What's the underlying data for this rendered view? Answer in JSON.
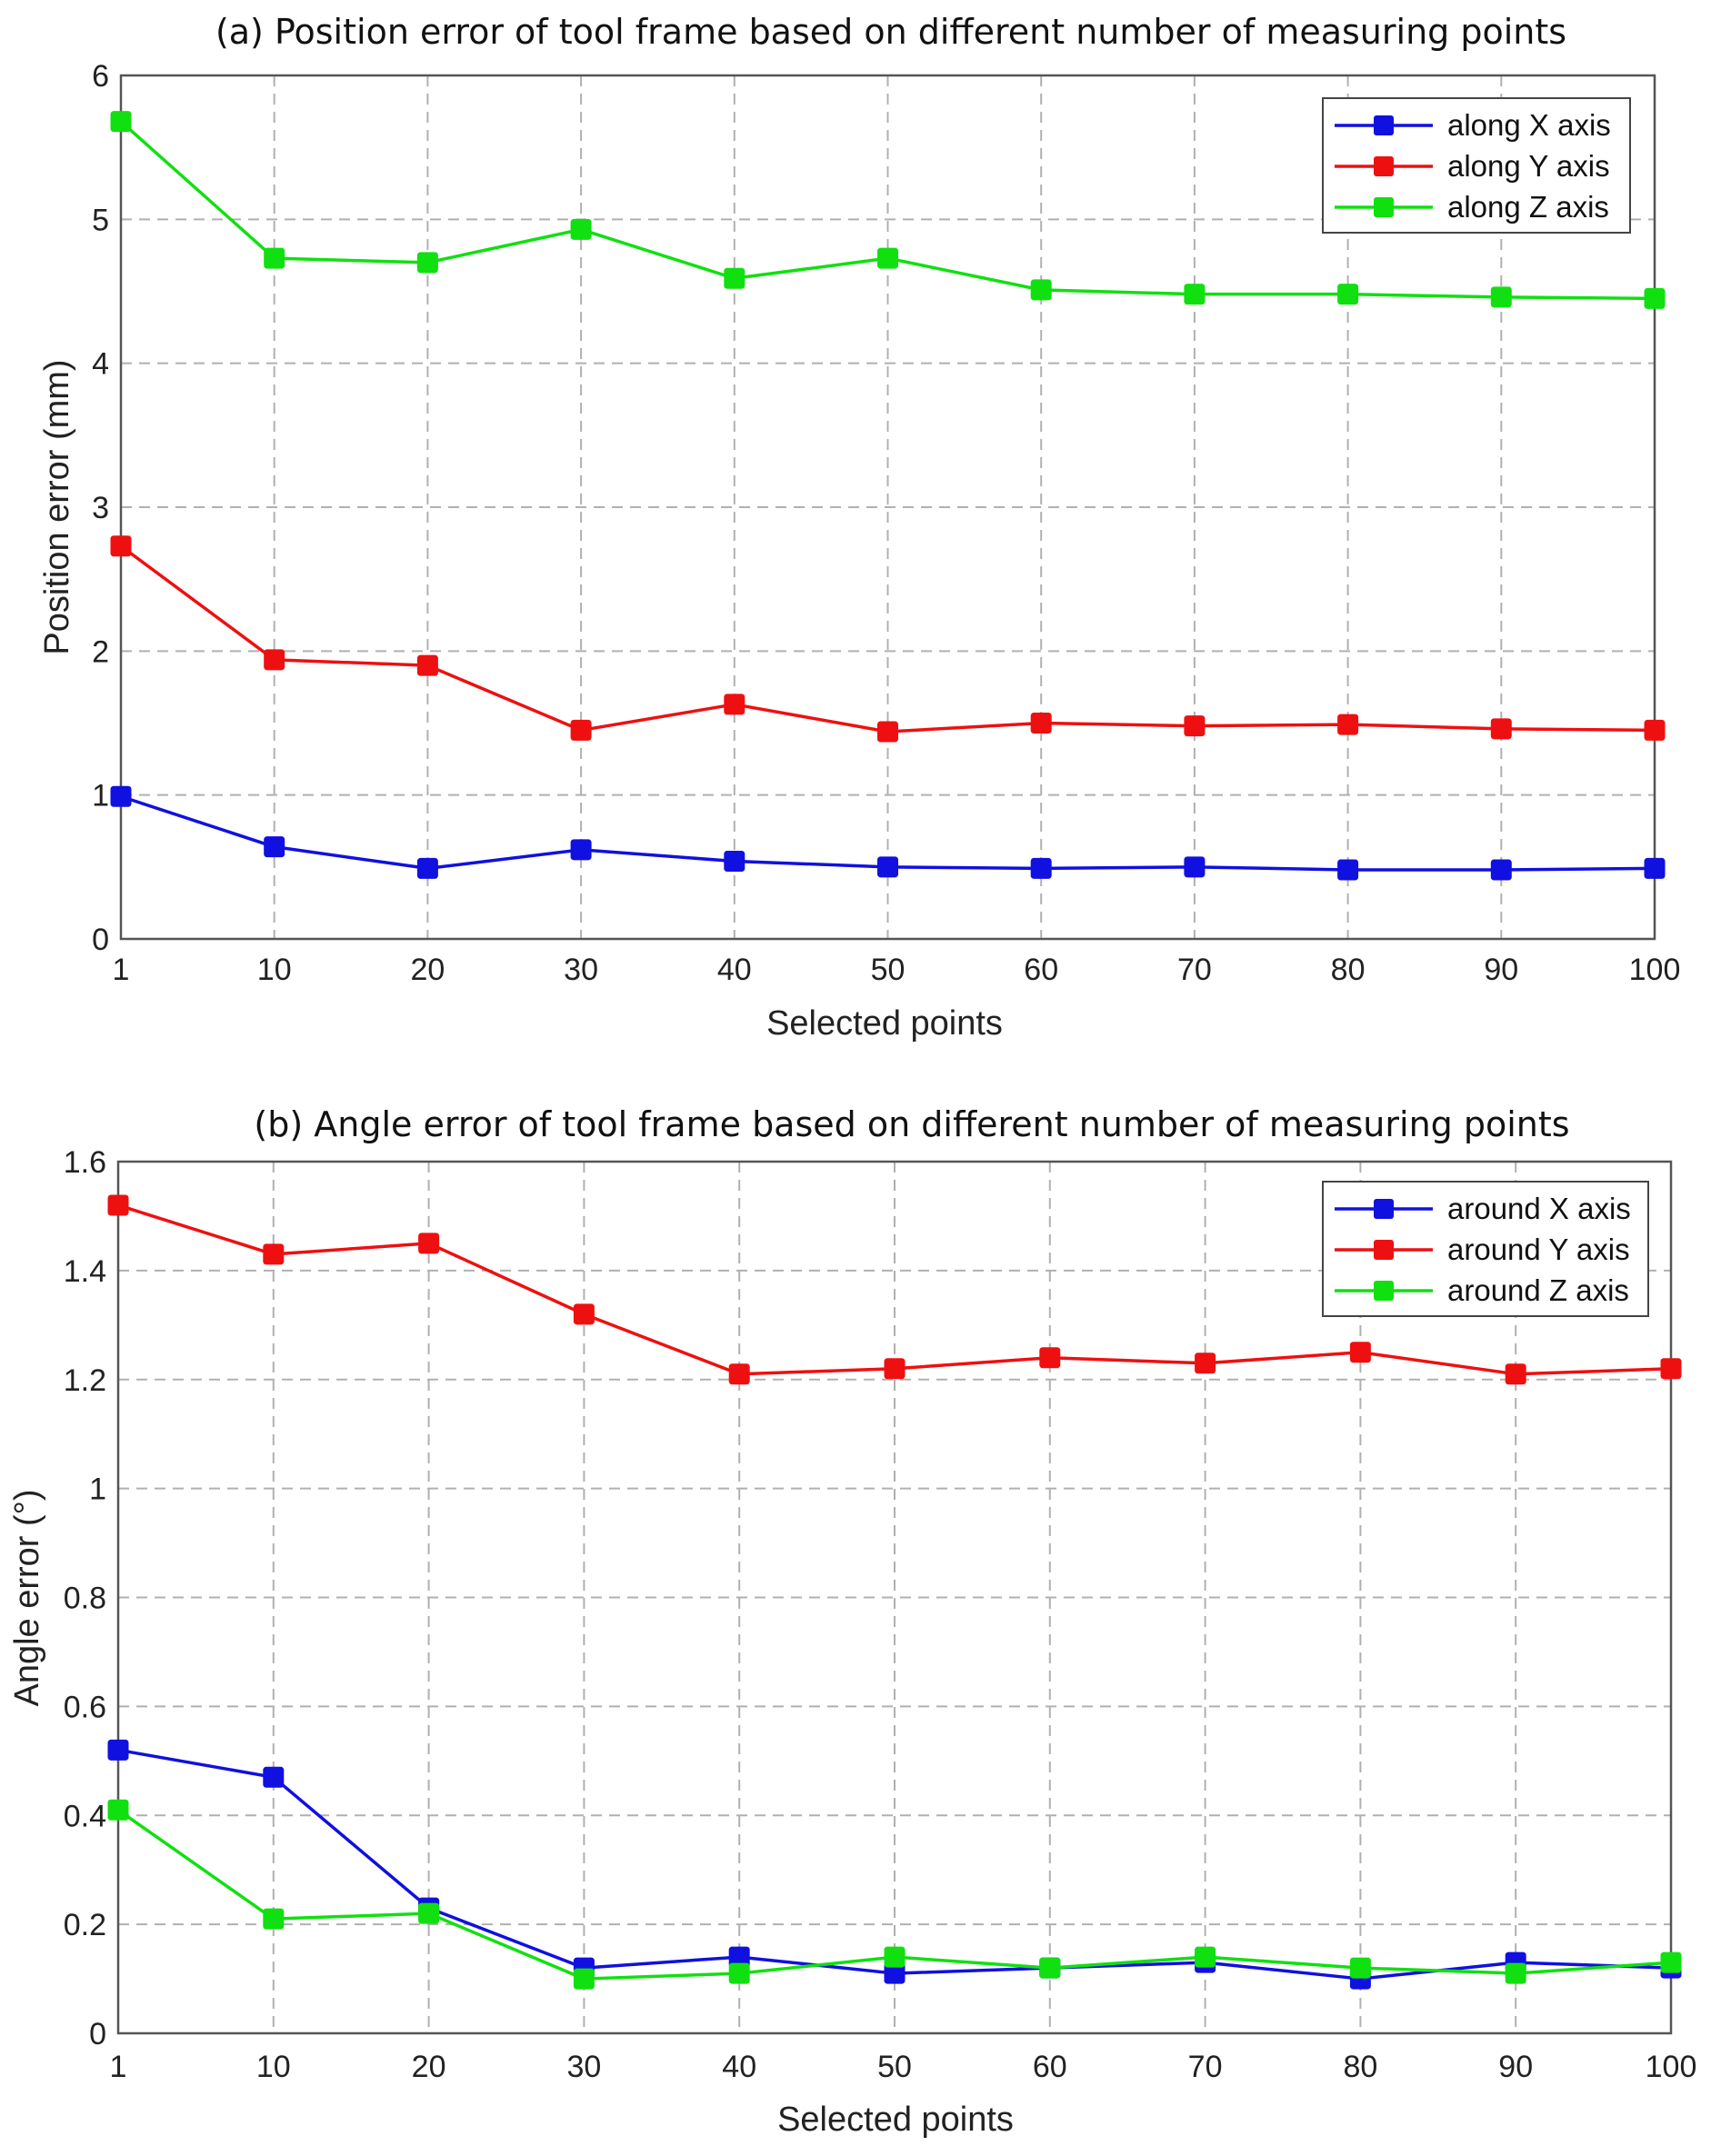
{
  "chart_data": [
    {
      "type": "line",
      "title": "(a) Position error of tool frame based on different number of measuring points",
      "xlabel": "Selected points",
      "ylabel": "Position error (mm)",
      "categories": [
        "1",
        "10",
        "20",
        "30",
        "40",
        "50",
        "60",
        "70",
        "80",
        "90",
        "100"
      ],
      "yticks": [
        "0",
        "1",
        "2",
        "3",
        "4",
        "5",
        "6"
      ],
      "ylim": [
        0,
        6
      ],
      "grid": true,
      "legend_position": "top-right",
      "series": [
        {
          "name": "along X axis",
          "color": "#1010e0",
          "values": [
            0.99,
            0.64,
            0.49,
            0.62,
            0.54,
            0.5,
            0.49,
            0.5,
            0.48,
            0.48,
            0.49
          ]
        },
        {
          "name": "along Y axis",
          "color": "#ee1010",
          "values": [
            2.73,
            1.94,
            1.9,
            1.45,
            1.63,
            1.44,
            1.5,
            1.48,
            1.49,
            1.46,
            1.45
          ]
        },
        {
          "name": "along Z axis",
          "color": "#10e010",
          "values": [
            5.68,
            4.73,
            4.7,
            4.93,
            4.59,
            4.73,
            4.51,
            4.48,
            4.48,
            4.46,
            4.45
          ]
        }
      ]
    },
    {
      "type": "line",
      "title": "(b) Angle error of tool frame based on different number of measuring points",
      "xlabel": "Selected points",
      "ylabel": "Angle error (°)",
      "categories": [
        "1",
        "10",
        "20",
        "30",
        "40",
        "50",
        "60",
        "70",
        "80",
        "90",
        "100"
      ],
      "yticks": [
        "0",
        "0.2",
        "0.4",
        "0.6",
        "0.8",
        "1",
        "1.2",
        "1.4",
        "1.6"
      ],
      "ylim": [
        0,
        1.6
      ],
      "grid": true,
      "legend_position": "top-right",
      "series": [
        {
          "name": "around X axis",
          "color": "#1010e0",
          "values": [
            0.52,
            0.47,
            0.23,
            0.12,
            0.14,
            0.11,
            0.12,
            0.13,
            0.1,
            0.13,
            0.12
          ]
        },
        {
          "name": "around Y axis",
          "color": "#ee1010",
          "values": [
            1.52,
            1.43,
            1.45,
            1.32,
            1.21,
            1.22,
            1.24,
            1.23,
            1.25,
            1.21,
            1.22
          ]
        },
        {
          "name": "around Z axis",
          "color": "#10e010",
          "values": [
            0.41,
            0.21,
            0.22,
            0.1,
            0.11,
            0.14,
            0.12,
            0.14,
            0.12,
            0.11,
            0.13
          ]
        }
      ]
    }
  ]
}
